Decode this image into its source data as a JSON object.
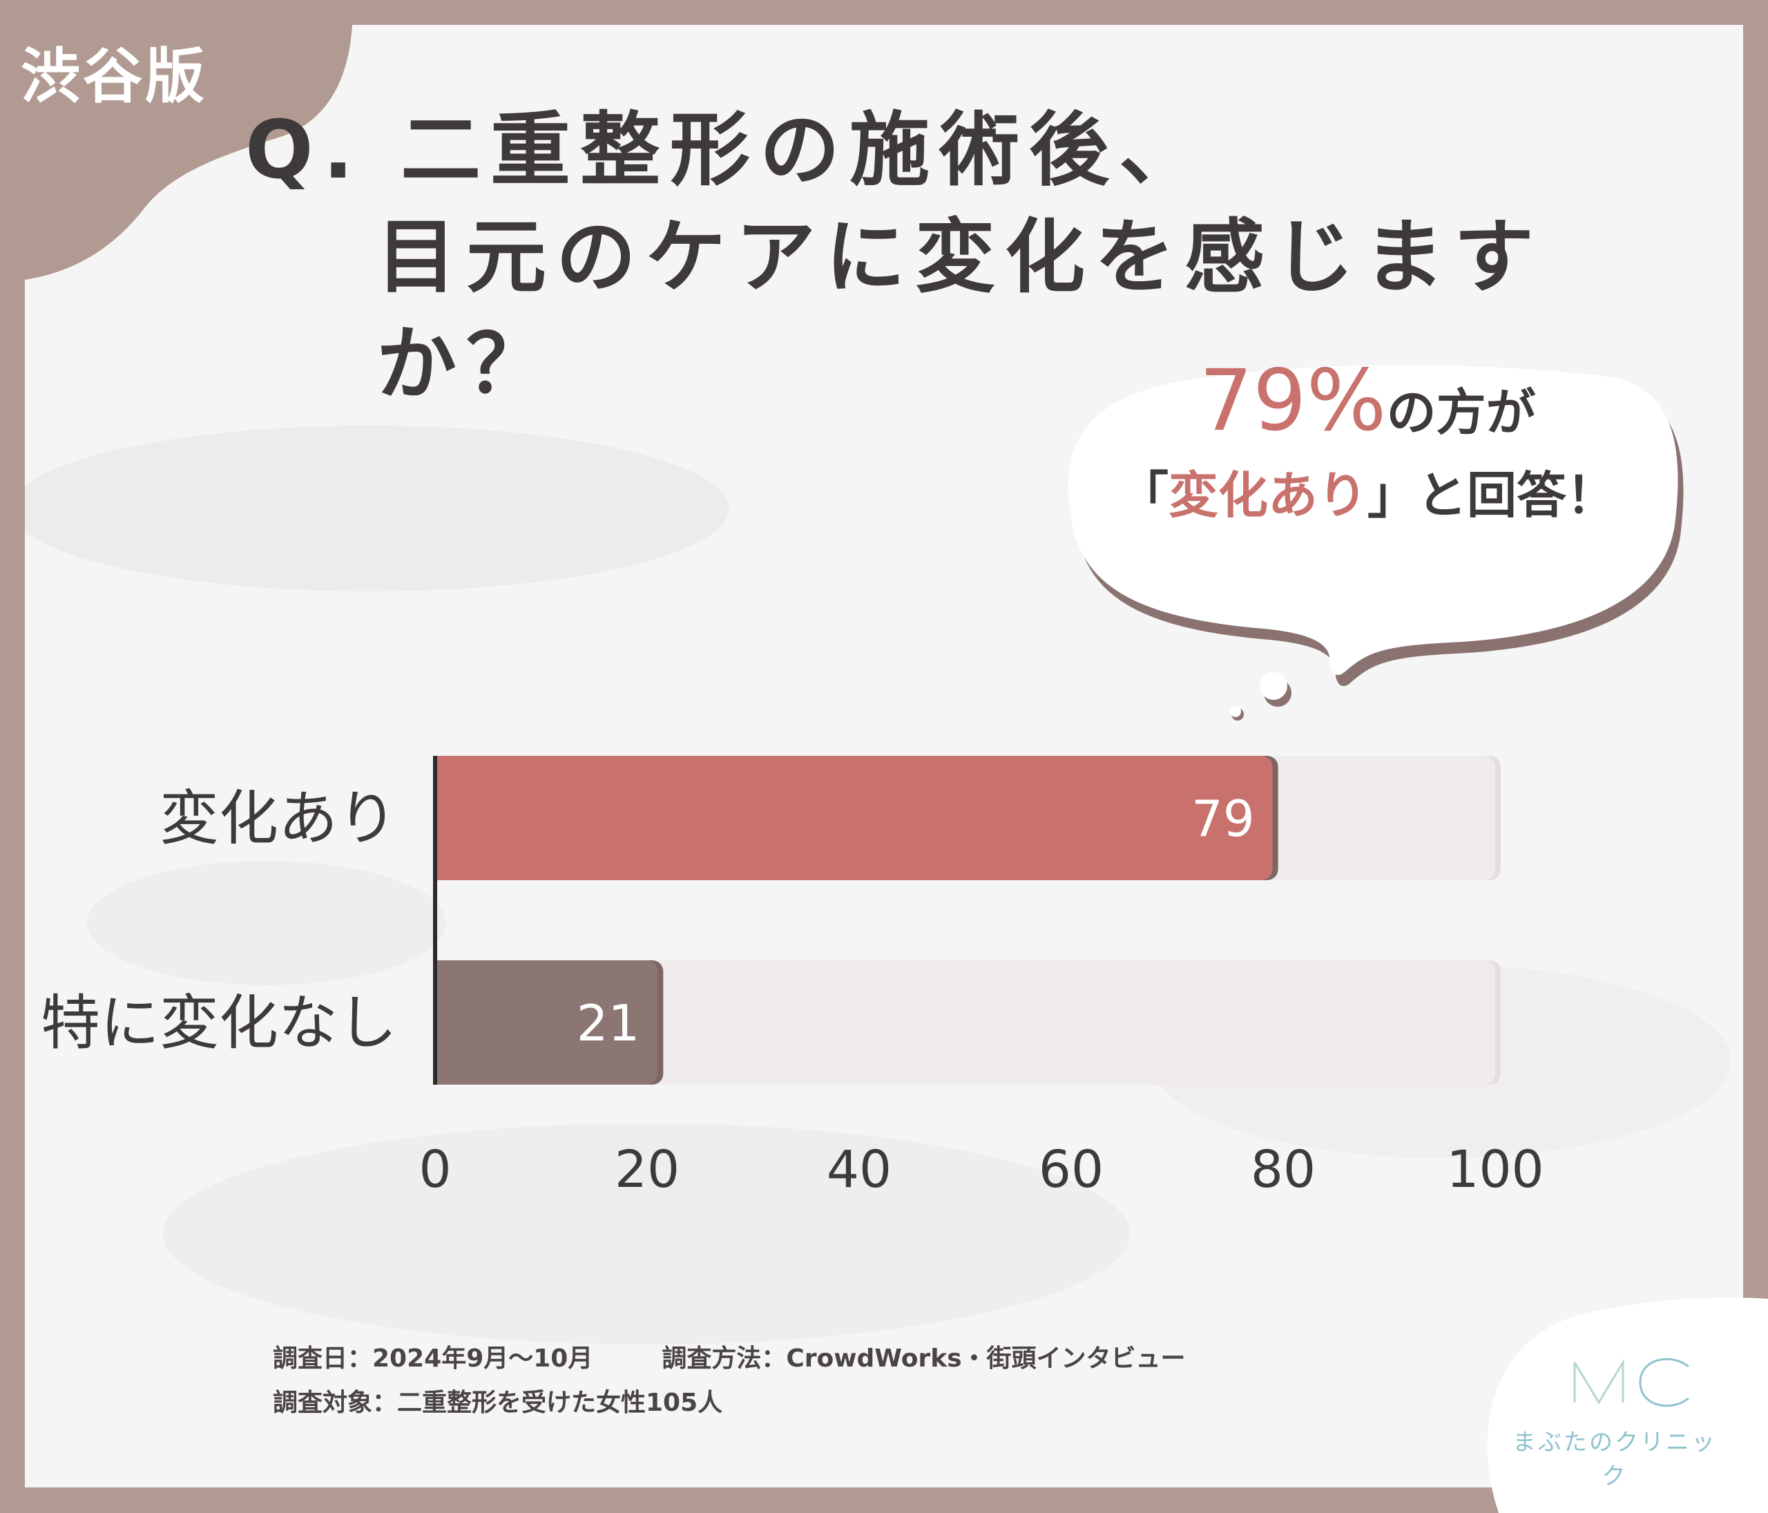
{
  "tag": "渋谷版",
  "title": {
    "line1": "Q. 二重整形の施術後、",
    "line2": "目元のケアに変化を感じますか？"
  },
  "callout": {
    "pct": "79%",
    "line1_rest": "の方が",
    "open_quote": "「",
    "highlight": "変化あり",
    "line2_rest": "」と回答！"
  },
  "colors": {
    "accent": "#c8716d",
    "secondary": "#8c7674",
    "track": "#efeceb",
    "frame": "#b09a92",
    "logo": "#8fc3cf"
  },
  "chart_data": {
    "type": "bar",
    "orientation": "horizontal",
    "categories": [
      "変化あり",
      "特に変化なし"
    ],
    "values": [
      79,
      21
    ],
    "data_labels": [
      "79",
      "21"
    ],
    "xlim": [
      0,
      100
    ],
    "x_ticks": [
      "0",
      "20",
      "40",
      "60",
      "80",
      "100"
    ],
    "grid": false,
    "legend": "none",
    "title": "Q. 二重整形の施術後、目元のケアに変化を感じますか？"
  },
  "footer": {
    "date": "調査日：2024年9月〜10月",
    "method": "調査方法：CrowdWorks・街頭インタビュー",
    "target": "調査対象：二重整形を受けた女性105人"
  },
  "logo": {
    "mark": "MC",
    "name": "まぶたのクリニック"
  }
}
